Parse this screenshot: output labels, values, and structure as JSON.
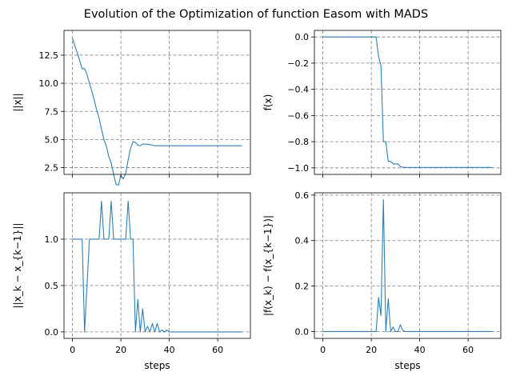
{
  "figure": {
    "title": "Evolution of the Optimization of function Easom with MADS"
  },
  "colors": {
    "line": "#2f7fb6"
  },
  "chart_data": [
    {
      "type": "line",
      "id": "norm-x",
      "ylabel": "||x||",
      "xlabel": "",
      "xlim": [
        -3.5,
        73.5
      ],
      "ylim": [
        1.9,
        14.7
      ],
      "xticks": [
        0,
        20,
        40,
        60
      ],
      "xtick_labels": [],
      "yticks": [
        2.5,
        5.0,
        7.5,
        10.0,
        12.5
      ],
      "ytick_labels": [
        "2.5",
        "5.0",
        "7.5",
        "10.0",
        "12.5"
      ],
      "grid": true,
      "x": [
        0,
        1,
        2,
        3,
        4,
        5,
        6,
        7,
        8,
        9,
        10,
        11,
        12,
        13,
        14,
        15,
        16,
        17,
        18,
        19,
        20,
        21,
        22,
        23,
        24,
        25,
        26,
        27,
        28,
        29,
        30,
        32,
        34,
        40,
        50,
        60,
        70
      ],
      "y": [
        14.0,
        13.3,
        12.7,
        12.0,
        11.3,
        11.3,
        10.8,
        10.0,
        9.3,
        8.5,
        7.6,
        6.9,
        5.9,
        5.0,
        4.4,
        3.5,
        2.9,
        1.9,
        1.0,
        0.95,
        1.8,
        1.5,
        2.0,
        3.2,
        4.2,
        4.8,
        4.75,
        4.5,
        4.45,
        4.6,
        4.6,
        4.55,
        4.45,
        4.45,
        4.45,
        4.45,
        4.45
      ]
    },
    {
      "type": "line",
      "id": "f-x",
      "ylabel": "f(x)",
      "xlabel": "",
      "xlim": [
        -3.5,
        73.5
      ],
      "ylim": [
        -1.05,
        0.05
      ],
      "xticks": [
        0,
        20,
        40,
        60
      ],
      "xtick_labels": [],
      "yticks": [
        0.0,
        -0.2,
        -0.4,
        -0.6,
        -0.8,
        -1.0
      ],
      "ytick_labels": [
        "0.0",
        "−0.2",
        "−0.4",
        "−0.6",
        "−0.8",
        "−1.0"
      ],
      "grid": true,
      "x": [
        0,
        5,
        10,
        15,
        20,
        21,
        22,
        23,
        24,
        25,
        26,
        27,
        28,
        29,
        30,
        31,
        32,
        33,
        35,
        40,
        50,
        60,
        70
      ],
      "y": [
        0.0,
        0.0,
        0.0,
        0.0,
        0.0,
        0.0,
        0.0,
        -0.15,
        -0.22,
        -0.8,
        -0.8,
        -0.95,
        -0.95,
        -0.97,
        -0.97,
        -0.97,
        -0.99,
        -0.995,
        -0.997,
        -0.997,
        -0.997,
        -0.997,
        -0.997
      ]
    },
    {
      "type": "line",
      "id": "step-x",
      "ylabel": "||x_k − x_{k−1}||",
      "xlabel": "steps",
      "xlim": [
        -3.5,
        73.5
      ],
      "ylim": [
        -0.07,
        1.5
      ],
      "xticks": [
        0,
        20,
        40,
        60
      ],
      "xtick_labels": [
        "0",
        "20",
        "40",
        "60"
      ],
      "yticks": [
        0.0,
        0.5,
        1.0
      ],
      "ytick_labels": [
        "0.0",
        "0.5",
        "1.0"
      ],
      "grid": true,
      "x": [
        0,
        1,
        2,
        3,
        4,
        5,
        6,
        7,
        8,
        9,
        10,
        11,
        12,
        13,
        14,
        15,
        16,
        17,
        18,
        19,
        20,
        21,
        22,
        23,
        24,
        25,
        26,
        27,
        28,
        29,
        30,
        31,
        32,
        33,
        34,
        35,
        36,
        37,
        38,
        39,
        40,
        45,
        50,
        60,
        70
      ],
      "y": [
        1.0,
        1.0,
        1.0,
        1.0,
        1.0,
        0.0,
        0.5,
        1.0,
        1.0,
        1.0,
        1.0,
        1.0,
        1.41,
        1.0,
        1.0,
        1.0,
        1.41,
        1.0,
        1.0,
        1.0,
        1.0,
        1.0,
        1.0,
        1.41,
        1.0,
        1.0,
        0.0,
        0.35,
        0.0,
        0.25,
        0.0,
        0.06,
        0.0,
        0.09,
        0.0,
        0.09,
        0.0,
        0.02,
        0.0,
        0.02,
        0.0,
        0.0,
        0.0,
        0.0,
        0.0
      ]
    },
    {
      "type": "line",
      "id": "step-f",
      "ylabel": "|f(x_k) − f(x_{k−1})|",
      "xlabel": "steps",
      "xlim": [
        -3.5,
        73.5
      ],
      "ylim": [
        -0.03,
        0.61
      ],
      "xticks": [
        0,
        20,
        40,
        60
      ],
      "xtick_labels": [
        "0",
        "20",
        "40",
        "60"
      ],
      "yticks": [
        0.0,
        0.2,
        0.4,
        0.6
      ],
      "ytick_labels": [
        "0.0",
        "0.2",
        "0.4",
        "0.6"
      ],
      "grid": true,
      "x": [
        0,
        5,
        10,
        15,
        20,
        21,
        22,
        23,
        24,
        25,
        26,
        27,
        28,
        29,
        30,
        31,
        32,
        33,
        34,
        35,
        40,
        50,
        60,
        70
      ],
      "y": [
        0.0,
        0.0,
        0.0,
        0.0,
        0.0,
        0.0,
        0.0,
        0.15,
        0.07,
        0.58,
        0.0,
        0.145,
        0.0,
        0.02,
        0.0,
        0.0,
        0.03,
        0.005,
        0.0,
        0.0,
        0.0,
        0.0,
        0.0,
        0.0
      ]
    }
  ]
}
